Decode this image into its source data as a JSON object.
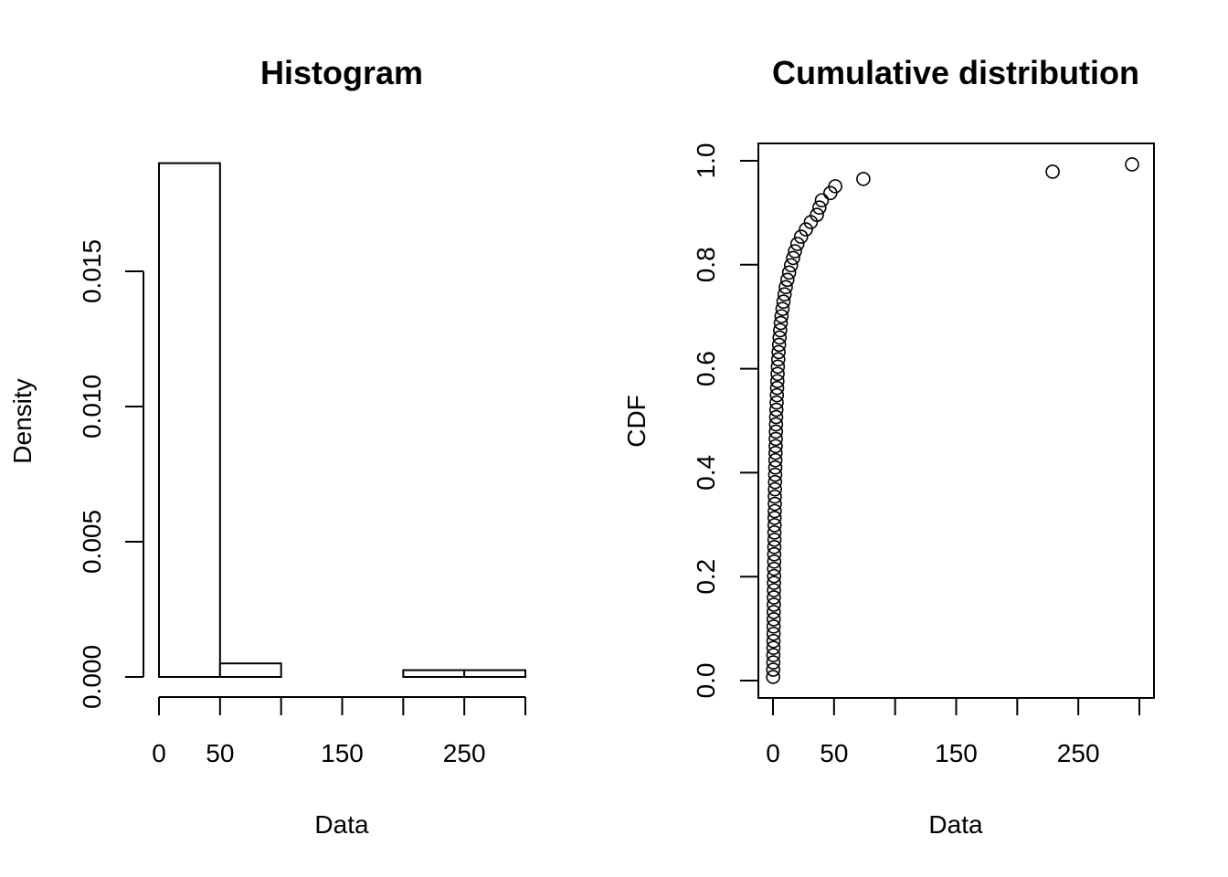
{
  "chart_data": [
    {
      "type": "bar",
      "title": "Histogram",
      "xlabel": "Data",
      "ylabel": "Density",
      "bins": [
        {
          "start": 0,
          "end": 50,
          "density": 0.019
        },
        {
          "start": 50,
          "end": 100,
          "density": 0.0005
        },
        {
          "start": 100,
          "end": 150,
          "density": 0.0
        },
        {
          "start": 150,
          "end": 200,
          "density": 0.0
        },
        {
          "start": 200,
          "end": 250,
          "density": 0.00025
        },
        {
          "start": 250,
          "end": 300,
          "density": 0.00025
        }
      ],
      "xlim": [
        0,
        300
      ],
      "ylim": [
        0,
        0.015
      ],
      "x_ticks": [
        0,
        50,
        100,
        150,
        200,
        250,
        300
      ],
      "x_tick_labels": [
        "0",
        "50",
        "",
        "150",
        "",
        "250",
        ""
      ],
      "y_ticks": [
        0,
        0.005,
        0.01,
        0.015
      ],
      "y_tick_labels": [
        "0.000",
        "0.005",
        "0.010",
        "0.015"
      ],
      "grid": false
    },
    {
      "type": "scatter",
      "title": "Cumulative distribution",
      "xlabel": "Data",
      "ylabel": "CDF",
      "x": [
        0.1,
        0.2,
        0.3,
        0.3,
        0.4,
        0.4,
        0.5,
        0.5,
        0.6,
        0.6,
        0.7,
        0.7,
        0.8,
        0.8,
        0.9,
        0.9,
        1.0,
        1.0,
        1.1,
        1.2,
        1.2,
        1.3,
        1.3,
        1.4,
        1.5,
        1.5,
        1.6,
        1.7,
        1.8,
        1.9,
        2.0,
        2.1,
        2.2,
        2.3,
        2.4,
        2.5,
        2.6,
        2.8,
        3.0,
        3.2,
        3.4,
        3.6,
        3.8,
        4.0,
        4.3,
        4.6,
        5.0,
        5.4,
        5.9,
        6.4,
        7.0,
        7.8,
        8.6,
        9.5,
        10.5,
        11.8,
        13.2,
        14.8,
        16.5,
        18.0,
        20.0,
        23.0,
        27.0,
        31.0,
        36.0,
        38.0,
        40.0,
        47.0,
        51.0,
        74.0,
        229.0,
        294.0
      ],
      "y": [
        0.007,
        0.021,
        0.035,
        0.049,
        0.063,
        0.076,
        0.09,
        0.104,
        0.118,
        0.132,
        0.146,
        0.16,
        0.174,
        0.188,
        0.201,
        0.215,
        0.229,
        0.243,
        0.257,
        0.271,
        0.285,
        0.299,
        0.313,
        0.326,
        0.34,
        0.354,
        0.368,
        0.382,
        0.396,
        0.41,
        0.424,
        0.438,
        0.451,
        0.465,
        0.479,
        0.493,
        0.507,
        0.521,
        0.535,
        0.549,
        0.563,
        0.576,
        0.59,
        0.604,
        0.618,
        0.632,
        0.646,
        0.66,
        0.674,
        0.688,
        0.701,
        0.715,
        0.729,
        0.743,
        0.757,
        0.771,
        0.785,
        0.799,
        0.813,
        0.826,
        0.84,
        0.854,
        0.868,
        0.882,
        0.896,
        0.91,
        0.924,
        0.938,
        0.951,
        0.965,
        0.979,
        0.993
      ],
      "xlim": [
        0,
        300
      ],
      "ylim": [
        0,
        1
      ],
      "x_ticks": [
        0,
        50,
        100,
        150,
        200,
        250,
        300
      ],
      "x_tick_labels": [
        "0",
        "50",
        "",
        "150",
        "",
        "250",
        ""
      ],
      "y_ticks": [
        0,
        0.2,
        0.4,
        0.6,
        0.8,
        1.0
      ],
      "y_tick_labels": [
        "0.0",
        "0.2",
        "0.4",
        "0.6",
        "0.8",
        "1.0"
      ],
      "grid": false
    }
  ]
}
